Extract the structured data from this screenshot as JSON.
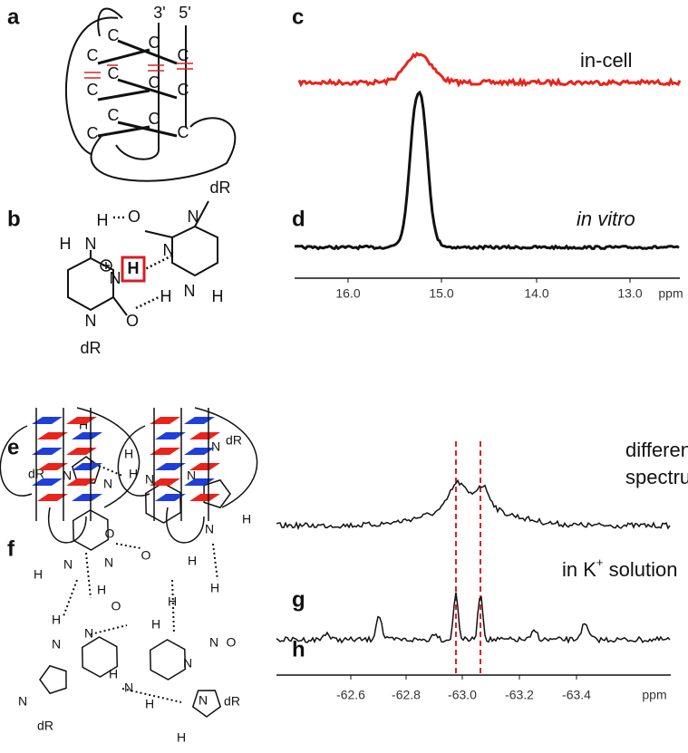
{
  "panels": {
    "labels": [
      "a",
      "b",
      "c",
      "d",
      "e",
      "f",
      "g",
      "h"
    ]
  },
  "panel_a": {
    "bases": [
      "C",
      "C",
      "C",
      "C",
      "C",
      "C",
      "C",
      "C",
      "C",
      "C",
      "C",
      "C"
    ],
    "ends": [
      "3'",
      "5'"
    ]
  },
  "panel_b": {
    "atoms": [
      "dR",
      "O",
      "N",
      "H",
      "H",
      "N",
      "N",
      "N",
      "H",
      "H",
      "N",
      "H",
      "O",
      "N",
      "dR"
    ]
  },
  "panel_c": {
    "label": "in-cell"
  },
  "panel_d": {
    "label": "in vitro",
    "axis": {
      "ticks": [
        "16.0",
        "15.0",
        "14.0",
        "13.0"
      ],
      "unit": "ppm"
    }
  },
  "panel_f": {
    "atoms": [
      "H",
      "dR",
      "N",
      "N",
      "H",
      "H",
      "N",
      "N",
      "N",
      "dR",
      "H",
      "N",
      "O",
      "O",
      "N",
      "H",
      "N",
      "H",
      "H",
      "N",
      "H",
      "H",
      "H",
      "N",
      "O",
      "N",
      "H",
      "O",
      "N",
      "N",
      "H",
      "N",
      "dR",
      "H",
      "N",
      "dR",
      "H"
    ]
  },
  "panel_g": {
    "label": [
      "difference",
      "spectrum"
    ]
  },
  "panel_h": {
    "label": [
      "in K",
      "+",
      " solution"
    ],
    "axis": {
      "ticks": [
        "-62.6",
        "-62.8",
        "-63.0",
        "-63.2",
        "-63.4"
      ],
      "unit": "ppm"
    }
  }
}
